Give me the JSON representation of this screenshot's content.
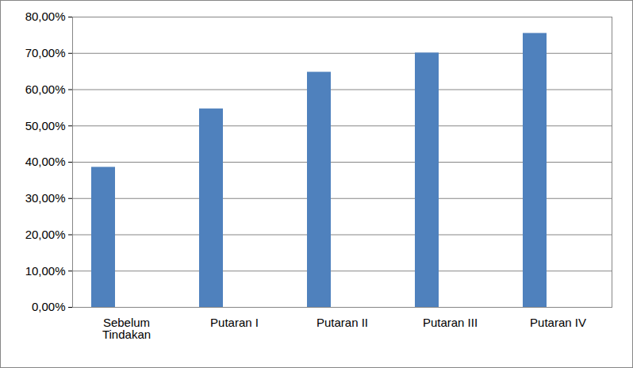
{
  "chart_data": {
    "type": "bar",
    "categories": [
      "Sebelum Tindakan",
      "Putaran I",
      "Putaran II",
      "Putaran III",
      "Putaran IV"
    ],
    "values": [
      38.6,
      54.7,
      64.8,
      70.1,
      75.5
    ],
    "color": "#4f81bd",
    "ylim": [
      0,
      80
    ],
    "yticks": [
      {
        "value": 0,
        "label": "0,00%"
      },
      {
        "value": 10,
        "label": "10,00%"
      },
      {
        "value": 20,
        "label": "20,00%"
      },
      {
        "value": 30,
        "label": "30,00%"
      },
      {
        "value": 40,
        "label": "40,00%"
      },
      {
        "value": 50,
        "label": "50,00%"
      },
      {
        "value": 60,
        "label": "60,00%"
      },
      {
        "value": 70,
        "label": "70,00%"
      },
      {
        "value": 80,
        "label": "80,00%"
      }
    ],
    "grid": true
  }
}
